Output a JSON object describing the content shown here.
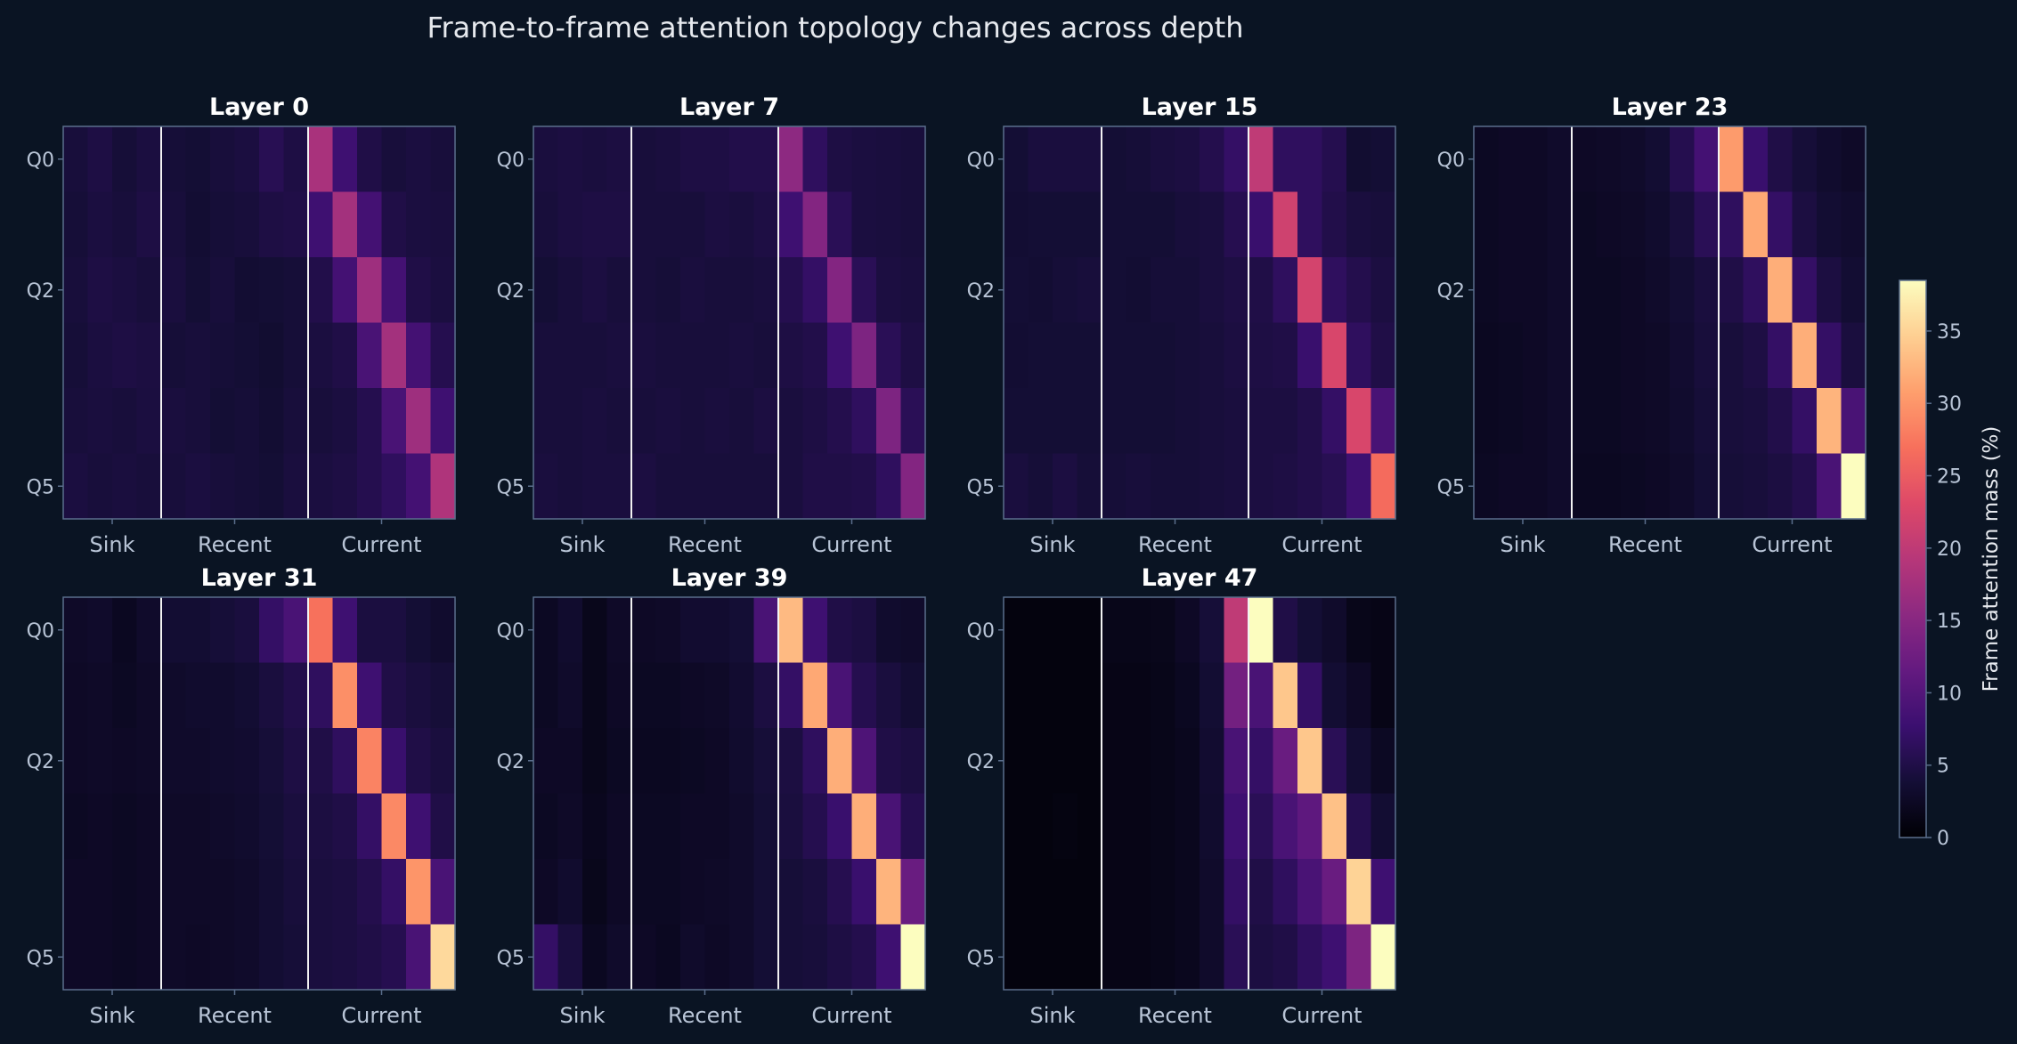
{
  "figure": {
    "title": "Frame-to-frame attention topology changes across depth",
    "background": "#0a1423",
    "text_color": "#e6e9ee",
    "tick_color": "#b8c4d6",
    "spine_color": "#5a6e8c",
    "divider_color": "#f2f2f2",
    "colormap": "magma"
  },
  "chart_data": {
    "type": "heatmap",
    "title": "Frame-to-frame attention topology changes across depth",
    "query_ticks": [
      {
        "index": 0,
        "label": "Q0"
      },
      {
        "index": 2,
        "label": "Q2"
      },
      {
        "index": 5,
        "label": "Q5"
      }
    ],
    "key_groups": [
      {
        "label": "Sink",
        "start": 0,
        "end": 4
      },
      {
        "label": "Recent",
        "start": 4,
        "end": 10
      },
      {
        "label": "Current",
        "start": 10,
        "end": 16
      }
    ],
    "n_queries": 6,
    "n_keys": 16,
    "colorbar": {
      "label": "Frame attention mass (%)",
      "min": 0,
      "max": 38.5,
      "ticks": [
        0,
        5,
        10,
        15,
        20,
        25,
        30,
        35
      ]
    },
    "panels": [
      {
        "title": "Layer 0",
        "values": [
          [
            4.2,
            4.8,
            4.0,
            4.5,
            4.0,
            3.8,
            4.2,
            4.5,
            5.8,
            4.8,
            18.0,
            8.0,
            5.0,
            4.2,
            4.5,
            4.2
          ],
          [
            4.0,
            4.5,
            4.2,
            4.8,
            4.2,
            3.6,
            4.0,
            4.2,
            4.8,
            5.0,
            8.0,
            17.5,
            8.5,
            5.0,
            4.5,
            4.4
          ],
          [
            4.2,
            4.8,
            4.5,
            4.2,
            4.4,
            3.8,
            4.2,
            3.6,
            3.8,
            4.0,
            5.2,
            8.5,
            17.0,
            8.5,
            5.0,
            4.5
          ],
          [
            4.0,
            4.5,
            4.8,
            4.6,
            4.0,
            4.2,
            4.0,
            3.8,
            3.5,
            4.0,
            4.5,
            5.0,
            9.0,
            17.5,
            8.5,
            5.5
          ],
          [
            4.2,
            4.4,
            4.2,
            4.5,
            4.4,
            4.2,
            3.8,
            4.0,
            3.6,
            4.2,
            4.2,
            4.5,
            5.5,
            9.0,
            17.0,
            8.0
          ],
          [
            4.5,
            4.2,
            4.4,
            4.2,
            4.2,
            4.5,
            4.2,
            4.0,
            3.8,
            4.4,
            4.5,
            4.8,
            5.5,
            6.5,
            8.5,
            18.5
          ]
        ]
      },
      {
        "title": "Layer 7",
        "values": [
          [
            4.4,
            4.6,
            4.4,
            4.6,
            4.2,
            4.4,
            4.8,
            4.8,
            5.2,
            5.2,
            15.5,
            6.5,
            4.8,
            4.5,
            4.4,
            4.2
          ],
          [
            4.2,
            4.6,
            4.8,
            4.8,
            4.2,
            4.2,
            4.2,
            4.6,
            4.4,
            4.8,
            8.0,
            14.5,
            6.0,
            4.5,
            4.4,
            4.2
          ],
          [
            3.8,
            4.2,
            4.6,
            4.2,
            4.2,
            4.0,
            4.4,
            4.2,
            4.2,
            4.4,
            5.5,
            7.0,
            14.5,
            6.0,
            4.6,
            4.4
          ],
          [
            4.2,
            4.2,
            4.2,
            4.4,
            4.4,
            4.2,
            4.2,
            4.2,
            4.4,
            4.2,
            4.8,
            5.2,
            8.0,
            14.0,
            6.0,
            4.8
          ],
          [
            4.2,
            4.2,
            4.4,
            4.2,
            4.2,
            4.4,
            4.2,
            4.4,
            4.2,
            4.6,
            4.4,
            4.8,
            5.4,
            6.5,
            14.0,
            6.0
          ],
          [
            4.4,
            4.2,
            4.4,
            4.4,
            4.6,
            4.2,
            4.2,
            4.2,
            4.2,
            4.2,
            4.4,
            5.0,
            5.0,
            5.2,
            6.5,
            14.5
          ]
        ]
      },
      {
        "title": "Layer 15",
        "values": [
          [
            3.8,
            4.4,
            4.4,
            4.4,
            3.8,
            4.0,
            4.4,
            4.6,
            5.4,
            7.0,
            20.0,
            6.5,
            6.5,
            5.5,
            3.5,
            3.8
          ],
          [
            3.6,
            3.8,
            3.8,
            3.8,
            3.8,
            3.8,
            3.8,
            4.2,
            4.4,
            5.6,
            7.5,
            21.5,
            6.5,
            5.2,
            4.4,
            4.2
          ],
          [
            3.8,
            3.6,
            4.0,
            4.2,
            3.8,
            3.6,
            4.0,
            4.0,
            4.4,
            4.8,
            5.0,
            6.5,
            22.0,
            6.5,
            5.4,
            4.6
          ],
          [
            3.6,
            3.8,
            3.8,
            3.8,
            3.8,
            3.8,
            3.8,
            4.0,
            4.2,
            4.6,
            4.8,
            5.0,
            7.5,
            22.5,
            6.5,
            5.0
          ],
          [
            3.8,
            3.8,
            3.8,
            3.8,
            3.8,
            3.8,
            3.8,
            4.0,
            4.2,
            4.4,
            4.6,
            4.6,
            5.2,
            7.0,
            22.5,
            9.0
          ],
          [
            4.4,
            4.0,
            4.6,
            4.0,
            4.0,
            4.2,
            4.0,
            4.0,
            4.2,
            4.4,
            4.6,
            4.8,
            5.2,
            5.8,
            8.0,
            26.5
          ]
        ]
      },
      {
        "title": "Layer 23",
        "values": [
          [
            2.4,
            2.6,
            2.6,
            3.0,
            2.6,
            2.8,
            3.0,
            3.6,
            5.5,
            8.5,
            30.5,
            7.5,
            5.0,
            4.0,
            3.2,
            2.8
          ],
          [
            2.4,
            2.6,
            2.6,
            3.0,
            2.4,
            2.6,
            2.8,
            3.2,
            4.2,
            6.0,
            6.5,
            31.5,
            7.0,
            4.6,
            3.6,
            3.2
          ],
          [
            2.4,
            2.6,
            2.6,
            3.0,
            2.4,
            2.4,
            2.6,
            3.0,
            3.6,
            4.4,
            5.0,
            6.5,
            32.0,
            7.0,
            4.6,
            3.6
          ],
          [
            2.2,
            2.4,
            2.6,
            3.0,
            2.4,
            2.4,
            2.6,
            2.8,
            3.4,
            4.2,
            4.2,
            4.8,
            7.0,
            32.0,
            7.0,
            4.4
          ],
          [
            2.2,
            2.4,
            2.6,
            3.0,
            2.4,
            2.4,
            2.6,
            2.8,
            3.2,
            4.0,
            4.2,
            4.4,
            5.2,
            7.0,
            32.5,
            9.0
          ],
          [
            2.4,
            2.6,
            2.6,
            3.0,
            2.2,
            2.2,
            2.4,
            2.6,
            3.0,
            3.8,
            4.0,
            4.2,
            4.6,
            5.4,
            9.0,
            38.5
          ]
        ]
      },
      {
        "title": "Layer 31",
        "values": [
          [
            2.8,
            3.0,
            2.2,
            3.0,
            3.6,
            3.6,
            4.0,
            4.4,
            7.0,
            9.0,
            27.0,
            8.0,
            4.5,
            4.5,
            3.8,
            3.2
          ],
          [
            2.6,
            2.8,
            2.4,
            2.8,
            3.0,
            3.2,
            3.2,
            3.6,
            4.4,
            5.2,
            6.5,
            29.5,
            8.0,
            5.0,
            4.4,
            4.0
          ],
          [
            2.6,
            2.8,
            2.6,
            2.8,
            3.0,
            3.0,
            3.2,
            3.4,
            4.0,
            4.8,
            5.0,
            6.5,
            28.5,
            7.5,
            5.0,
            4.4
          ],
          [
            2.4,
            2.6,
            2.4,
            2.6,
            2.8,
            2.8,
            3.0,
            3.2,
            3.8,
            4.4,
            4.6,
            5.0,
            7.0,
            29.0,
            8.0,
            5.0
          ],
          [
            2.6,
            2.6,
            2.4,
            2.6,
            2.8,
            2.8,
            2.8,
            3.0,
            3.6,
            4.2,
            4.4,
            4.6,
            5.4,
            7.0,
            30.0,
            9.0
          ],
          [
            2.6,
            2.6,
            2.4,
            2.6,
            2.8,
            2.6,
            2.8,
            3.0,
            3.6,
            4.0,
            4.4,
            4.6,
            5.0,
            5.6,
            9.0,
            35.5
          ]
        ]
      },
      {
        "title": "Layer 39",
        "values": [
          [
            2.4,
            3.2,
            1.8,
            2.8,
            2.6,
            2.8,
            3.4,
            3.4,
            3.8,
            9.0,
            33.0,
            8.0,
            5.0,
            4.6,
            3.2,
            3.0
          ],
          [
            2.4,
            3.0,
            1.8,
            2.6,
            2.4,
            2.4,
            2.6,
            2.8,
            3.4,
            4.6,
            7.0,
            31.5,
            9.0,
            5.5,
            4.4,
            3.6
          ],
          [
            2.6,
            2.6,
            1.8,
            2.4,
            2.2,
            2.2,
            2.4,
            2.6,
            3.2,
            4.0,
            4.6,
            6.5,
            32.0,
            9.5,
            5.0,
            4.6
          ],
          [
            2.4,
            2.8,
            2.0,
            2.6,
            2.4,
            2.4,
            2.6,
            2.6,
            3.0,
            3.8,
            4.4,
            5.5,
            7.5,
            32.0,
            9.0,
            5.5
          ],
          [
            2.6,
            3.2,
            1.8,
            2.6,
            2.4,
            2.4,
            2.6,
            2.8,
            3.0,
            3.8,
            4.0,
            4.4,
            5.6,
            7.5,
            32.5,
            12.0
          ],
          [
            7.0,
            4.4,
            2.2,
            3.0,
            2.6,
            2.2,
            3.0,
            2.6,
            3.0,
            3.8,
            4.0,
            4.2,
            4.8,
            5.4,
            8.0,
            38.5
          ]
        ]
      },
      {
        "title": "Layer 47",
        "values": [
          [
            0.8,
            0.8,
            0.8,
            0.8,
            1.6,
            1.6,
            1.8,
            2.6,
            4.0,
            20.0,
            38.5,
            5.0,
            3.8,
            3.0,
            1.6,
            1.4
          ],
          [
            0.8,
            0.8,
            0.8,
            0.8,
            1.4,
            1.4,
            1.6,
            2.2,
            3.6,
            13.0,
            9.0,
            34.0,
            7.0,
            3.6,
            2.6,
            1.4
          ],
          [
            0.8,
            0.8,
            0.8,
            0.8,
            1.4,
            1.4,
            1.6,
            2.0,
            3.4,
            9.0,
            7.0,
            12.0,
            34.0,
            6.0,
            3.6,
            2.4
          ],
          [
            0.8,
            0.8,
            1.0,
            0.8,
            1.4,
            1.4,
            1.6,
            2.0,
            3.2,
            8.0,
            6.0,
            9.0,
            11.0,
            33.5,
            5.5,
            3.6
          ],
          [
            0.8,
            0.8,
            0.8,
            0.8,
            1.4,
            1.4,
            1.6,
            2.0,
            3.0,
            7.0,
            5.0,
            6.5,
            9.0,
            12.0,
            35.0,
            8.0
          ],
          [
            0.8,
            0.8,
            0.8,
            0.8,
            1.4,
            1.4,
            1.6,
            2.0,
            3.0,
            6.0,
            4.6,
            5.0,
            6.5,
            8.0,
            14.0,
            38.5
          ]
        ]
      }
    ]
  }
}
